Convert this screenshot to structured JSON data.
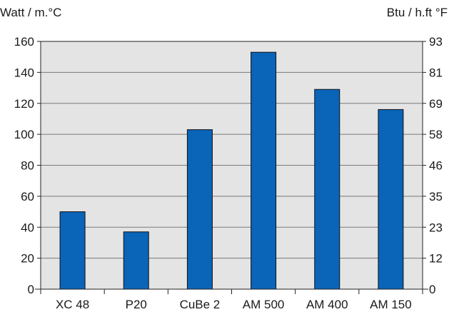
{
  "chart_data": {
    "type": "bar",
    "title": "",
    "xlabel": "",
    "ylabel": "Watt / m.°C",
    "y2label": "Btu / h.ft °F",
    "categories": [
      "XC 48",
      "P20",
      "CuBe 2",
      "AM 500",
      "AM 400",
      "AM 150"
    ],
    "values": [
      50,
      37,
      103,
      153,
      129,
      116
    ],
    "ylim": [
      0,
      160
    ],
    "yticks": [
      0,
      20,
      40,
      60,
      80,
      100,
      120,
      140,
      160
    ],
    "y2ticks": [
      "0",
      "12",
      "23",
      "35",
      "46",
      "58",
      "69",
      "81",
      "93"
    ],
    "grid": true,
    "legend": "none",
    "colors": {
      "bar": "#0a64b8",
      "bar_edge": "#111111",
      "plot_bg": "#e4e4e4",
      "grid": "#7a7a7a",
      "axis": "#222222"
    }
  }
}
